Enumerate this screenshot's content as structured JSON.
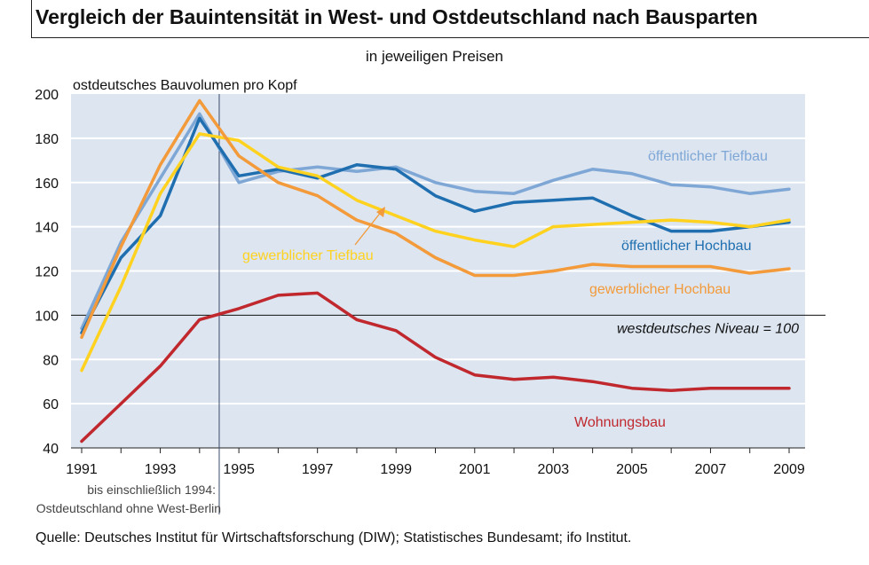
{
  "header": {
    "title": "Vergleich der Bauintensität in West- und Ostdeutschland nach Bausparten",
    "subtitle": "in jeweiligen Preisen"
  },
  "footer": {
    "source": "Quelle: Deutsches Institut für Wirtschaftsforschung (DIW); Statistisches Bundesamt; ifo Institut."
  },
  "chart_data": {
    "type": "line",
    "title": "Vergleich der Bauintensität in West- und Ostdeutschland nach Bausparten",
    "subtitle": "in jeweiligen Preisen",
    "ylabel": "ostdeutsches Bauvolumen pro Kopf",
    "xlabel": "",
    "x": [
      1991,
      1992,
      1993,
      1994,
      1995,
      1996,
      1997,
      1998,
      1999,
      2000,
      2001,
      2002,
      2003,
      2004,
      2005,
      2006,
      2007,
      2008,
      2009
    ],
    "xticks": [
      "1991",
      "1993",
      "1995",
      "1997",
      "1999",
      "2001",
      "2003",
      "2005",
      "2007",
      "2009"
    ],
    "yticks": [
      "40",
      "60",
      "80",
      "100",
      "120",
      "140",
      "160",
      "180",
      "200"
    ],
    "xlim": [
      1991,
      2009
    ],
    "ylim": [
      40,
      200
    ],
    "grid": true,
    "series": [
      {
        "name": "öffentlicher Tiefbau",
        "color": "#7fa7d6",
        "values": [
          94,
          133,
          162,
          191,
          160,
          165,
          167,
          165,
          167,
          160,
          156,
          155,
          161,
          166,
          164,
          159,
          158,
          155,
          157
        ]
      },
      {
        "name": "öffentlicher Hochbau",
        "color": "#1f6fb0",
        "values": [
          92,
          126,
          145,
          189,
          163,
          166,
          162,
          168,
          166,
          154,
          147,
          151,
          152,
          153,
          145,
          138,
          138,
          140,
          142
        ]
      },
      {
        "name": "gewerblicher Tiefbau",
        "color": "#ffd21f",
        "values": [
          75,
          113,
          155,
          182,
          179,
          167,
          163,
          152,
          145,
          138,
          134,
          131,
          140,
          141,
          142,
          143,
          142,
          140,
          143
        ]
      },
      {
        "name": "gewerblicher Hochbau",
        "color": "#f39a3a",
        "values": [
          90,
          131,
          168,
          197,
          172,
          160,
          154,
          143,
          137,
          126,
          118,
          118,
          120,
          123,
          122,
          122,
          122,
          119,
          121
        ]
      },
      {
        "name": "Wohnungsbau",
        "color": "#c0282d",
        "values": [
          43,
          60,
          77,
          98,
          103,
          109,
          110,
          98,
          93,
          81,
          73,
          71,
          72,
          70,
          67,
          66,
          67,
          67,
          67
        ]
      }
    ],
    "reference_line": {
      "value": 100,
      "label": "westdeutsches Niveau = 100"
    },
    "marker_line": {
      "x": 1994.5
    },
    "annotation": "bis einschließlich 1994:\nOstdeutschland ohne West-Berlin",
    "annotation_lines": [
      "bis einschließlich 1994:",
      "Ostdeutschland ohne West-Berlin"
    ],
    "arrow_label": "gewerblicher Tiefbau"
  }
}
